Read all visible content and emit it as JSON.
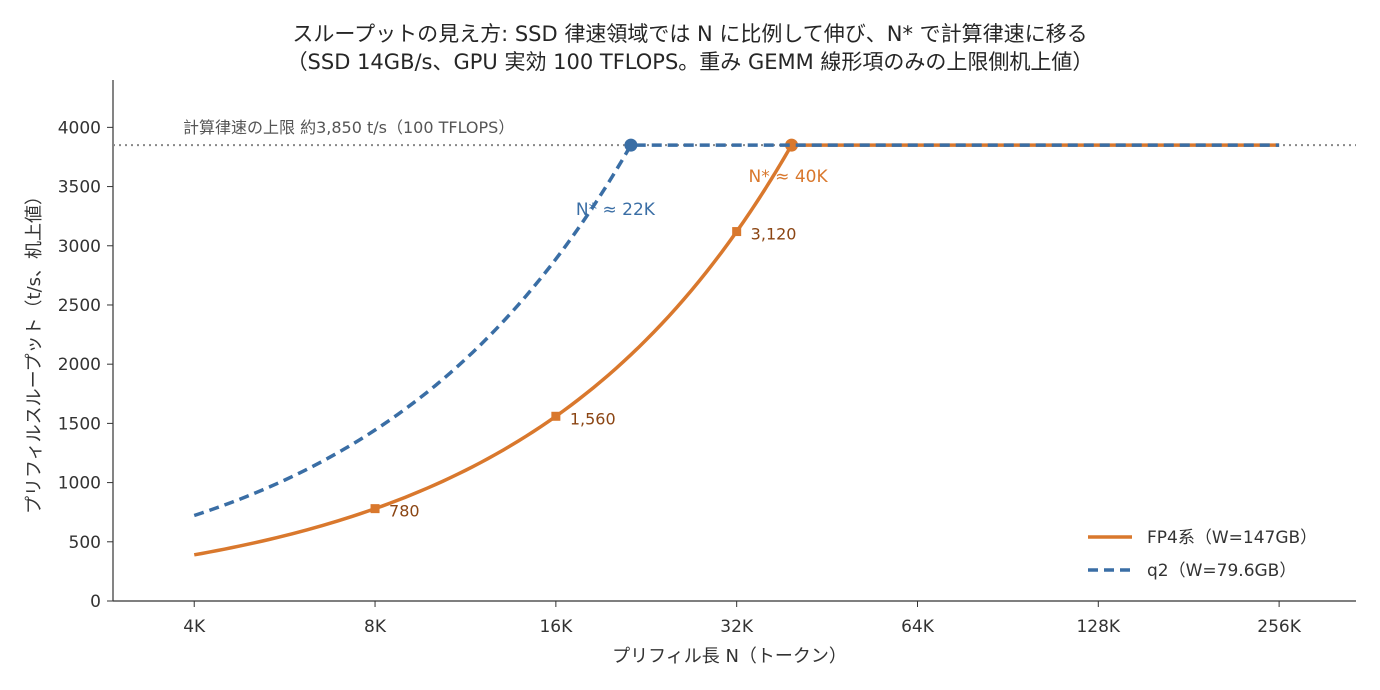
{
  "title_line1": "スループットの見え方: SSD 律速領域では N に比例して伸び、N* で計算律速に移る",
  "title_line2": "（SSD 14GB/s、GPU 実効 100 TFLOPS。重み GEMM 線形項のみの上限側机上値）",
  "chart_data": {
    "type": "line",
    "xscale": "log2",
    "xlabel": "プリフィル長 N（トークン）",
    "ylabel": "プリフィルスループット（t/s、机上値）",
    "x_ticks": [
      4096,
      8192,
      16384,
      32768,
      65536,
      131072,
      262144
    ],
    "x_tick_labels": [
      "4K",
      "8K",
      "16K",
      "32K",
      "64K",
      "128K",
      "256K"
    ],
    "y_ticks": [
      0,
      500,
      1000,
      1500,
      2000,
      2500,
      3000,
      3500,
      4000
    ],
    "y_tick_labels": [
      "0",
      "500",
      "1000",
      "1500",
      "2000",
      "2500",
      "3000",
      "3500",
      "4000"
    ],
    "ylim": [
      0,
      4400
    ],
    "xlim": [
      3000,
      352000
    ],
    "grid": false,
    "legend_position": "lower-right",
    "compute_ceiling": {
      "value": 3850,
      "label": "計算律速の上限 約3,850 t/s（100 TFLOPS）",
      "color": "#888888"
    },
    "series": [
      {
        "name": "FP4系（W=147GB）",
        "color": "#d9782d",
        "style": "solid",
        "points": [
          {
            "x": 4096,
            "y": 390
          },
          {
            "x": 8192,
            "y": 780
          },
          {
            "x": 16384,
            "y": 1560
          },
          {
            "x": 32768,
            "y": 3120
          },
          {
            "x": 40442,
            "y": 3850
          },
          {
            "x": 262144,
            "y": 3850
          }
        ],
        "markers": [
          {
            "x": 8192,
            "y": 780,
            "label": "780"
          },
          {
            "x": 16384,
            "y": 1560,
            "label": "1,560"
          },
          {
            "x": 32768,
            "y": 3120,
            "label": "3,120"
          }
        ],
        "transition": {
          "x": 40442,
          "y": 3850,
          "label": "N* ≈ 40K"
        }
      },
      {
        "name": "q2（W=79.6GB）",
        "color": "#3a6ea5",
        "style": "dashed",
        "points": [
          {
            "x": 4096,
            "y": 722
          },
          {
            "x": 8192,
            "y": 1444
          },
          {
            "x": 16384,
            "y": 2888
          },
          {
            "x": 21846,
            "y": 3850
          },
          {
            "x": 262144,
            "y": 3850
          }
        ],
        "markers": [],
        "transition": {
          "x": 21846,
          "y": 3850,
          "label": "N* ≈ 22K"
        }
      }
    ],
    "label_colors": {
      "marker_text": "#8b4513"
    }
  }
}
